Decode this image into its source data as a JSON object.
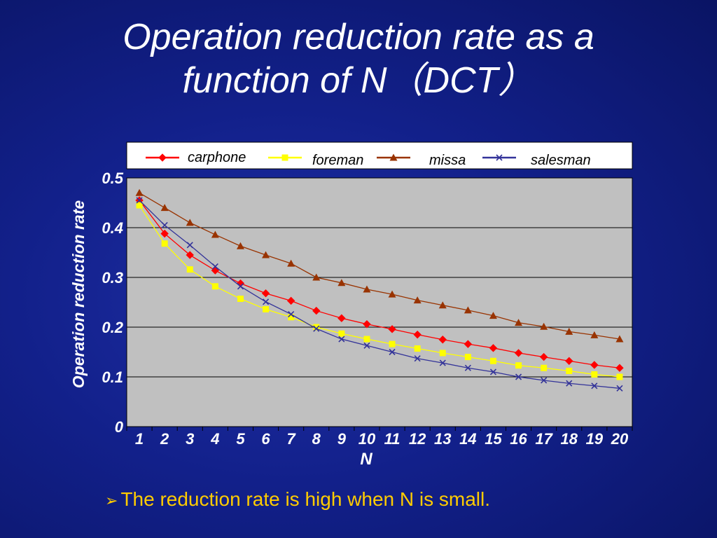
{
  "slide": {
    "title_line1": "Operation reduction rate as a",
    "title_line2": "function of N（DCT）",
    "bullet_icon": "arrow-bullet-icon",
    "bullet_text": "The reduction rate is high when N is small."
  },
  "colors": {
    "background": "#12208a",
    "plot_area": "#c0c0c0",
    "carphone": "#ff0000",
    "foreman": "#ffff00",
    "missa": "#993300",
    "salesman": "#333399",
    "text": "#ffffff",
    "bullet_text": "#ffcc00"
  },
  "chart_data": {
    "type": "line",
    "title": "",
    "xlabel": "N",
    "ylabel": "Operation reduction rate",
    "x": [
      1,
      2,
      3,
      4,
      5,
      6,
      7,
      8,
      9,
      10,
      11,
      12,
      13,
      14,
      15,
      16,
      17,
      18,
      19,
      20
    ],
    "ylim": [
      0,
      0.5
    ],
    "yticks": [
      0,
      0.1,
      0.2,
      0.3,
      0.4,
      0.5
    ],
    "ytick_labels": [
      "0",
      "0.1",
      "0.2",
      "0.3",
      "0.4",
      "0.5"
    ],
    "grid": "horizontal",
    "legend_position": "top",
    "series": [
      {
        "name": "carphone",
        "marker": "diamond",
        "color": "#ff0000",
        "values": [
          0.455,
          0.388,
          0.345,
          0.314,
          0.288,
          0.268,
          0.253,
          0.233,
          0.218,
          0.206,
          0.196,
          0.185,
          0.175,
          0.166,
          0.158,
          0.148,
          0.14,
          0.132,
          0.124,
          0.118
        ]
      },
      {
        "name": "foreman",
        "marker": "square",
        "color": "#ffff00",
        "values": [
          0.445,
          0.368,
          0.316,
          0.282,
          0.257,
          0.236,
          0.22,
          0.2,
          0.187,
          0.176,
          0.166,
          0.157,
          0.148,
          0.14,
          0.132,
          0.123,
          0.118,
          0.112,
          0.105,
          0.1
        ]
      },
      {
        "name": "missa",
        "marker": "triangle",
        "color": "#993300",
        "values": [
          0.47,
          0.44,
          0.41,
          0.386,
          0.363,
          0.345,
          0.328,
          0.3,
          0.289,
          0.276,
          0.266,
          0.254,
          0.244,
          0.234,
          0.223,
          0.209,
          0.201,
          0.191,
          0.184,
          0.176
        ]
      },
      {
        "name": "salesman",
        "marker": "x",
        "color": "#333399",
        "values": [
          0.455,
          0.405,
          0.365,
          0.322,
          0.282,
          0.251,
          0.226,
          0.197,
          0.176,
          0.163,
          0.15,
          0.137,
          0.128,
          0.118,
          0.11,
          0.1,
          0.093,
          0.087,
          0.082,
          0.077
        ]
      }
    ]
  }
}
